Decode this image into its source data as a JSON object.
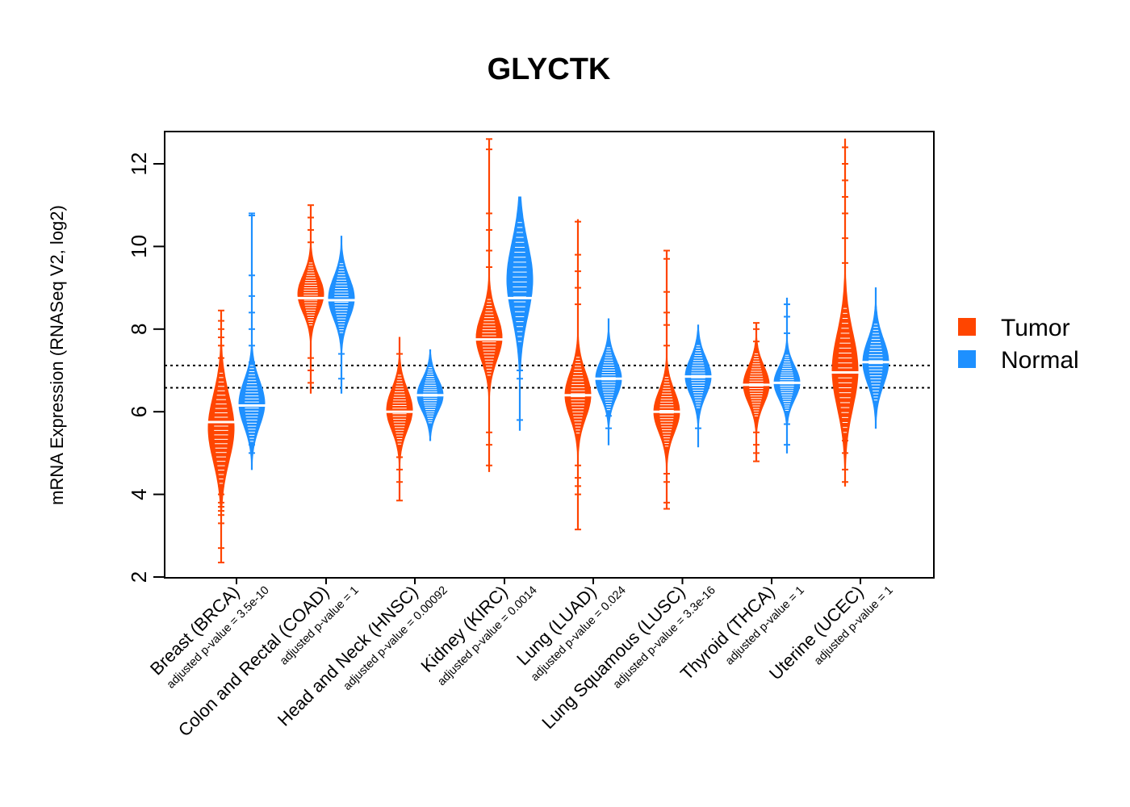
{
  "chart_data": {
    "type": "beanplot",
    "title": "GLYCTK",
    "xlabel": "",
    "ylabel": "mRNA Expression (RNASeq V2, log2)",
    "ylim": [
      2,
      12.8
    ],
    "yticks": [
      "2",
      "4",
      "6",
      "8",
      "10",
      "12"
    ],
    "reference_lines": [
      6.58,
      7.12
    ],
    "legend": {
      "position": "right",
      "entries": [
        {
          "name": "Tumor",
          "color": "#FF4500"
        },
        {
          "name": "Normal",
          "color": "#1E90FF"
        }
      ]
    },
    "categories": [
      {
        "label": "Breast (BRCA)",
        "pvalue": "adjusted p-value = 3.5e-10",
        "tumor": {
          "median": 5.75,
          "center": 5.6,
          "spread": 0.8,
          "min": 2.35,
          "max": 8.45,
          "outliers": [
            2.35,
            2.7,
            3.3,
            3.5,
            3.6,
            3.7,
            3.8,
            4.0,
            4.2,
            7.0,
            7.3,
            7.6,
            7.8,
            8.0,
            8.2,
            8.45
          ]
        },
        "normal": {
          "median": 6.15,
          "center": 6.2,
          "spread": 0.55,
          "min": 4.6,
          "max": 10.8,
          "outliers": [
            5.0,
            5.2,
            7.2,
            7.6,
            8.0,
            8.4,
            8.8,
            9.3,
            10.75,
            10.8
          ]
        }
      },
      {
        "label": "Colon and Rectal (COAD)",
        "pvalue": "adjusted p-value = 1",
        "tumor": {
          "median": 8.75,
          "center": 8.85,
          "spread": 0.45,
          "min": 6.45,
          "max": 11.0,
          "outliers": [
            6.7,
            7.0,
            7.3,
            10.1,
            10.4,
            10.7,
            11.0
          ]
        },
        "normal": {
          "median": 8.7,
          "center": 8.75,
          "spread": 0.5,
          "min": 6.45,
          "max": 10.25,
          "outliers": [
            6.8,
            7.4
          ]
        }
      },
      {
        "label": "Head and Neck (HNSC)",
        "pvalue": "adjusted p-value = 0.00092",
        "tumor": {
          "median": 6.0,
          "center": 6.05,
          "spread": 0.5,
          "min": 3.85,
          "max": 7.8,
          "outliers": [
            3.85,
            4.3,
            4.6,
            4.9,
            7.4
          ]
        },
        "normal": {
          "median": 6.4,
          "center": 6.4,
          "spread": 0.4,
          "min": 5.3,
          "max": 7.5,
          "outliers": []
        }
      },
      {
        "label": "Kidney (KIRC)",
        "pvalue": "adjusted p-value = 0.0014",
        "tumor": {
          "median": 7.75,
          "center": 7.8,
          "spread": 0.55,
          "min": 4.55,
          "max": 12.6,
          "outliers": [
            4.7,
            5.2,
            5.5,
            9.5,
            9.9,
            10.4,
            10.8,
            12.35,
            12.6
          ]
        },
        "normal": {
          "median": 8.75,
          "center": 9.2,
          "spread": 0.9,
          "min": 5.55,
          "max": 11.2,
          "outliers": [
            5.8,
            6.8,
            7.0,
            10.7
          ]
        }
      },
      {
        "label": "Lung (LUAD)",
        "pvalue": "adjusted p-value = 0.024",
        "tumor": {
          "median": 6.4,
          "center": 6.4,
          "spread": 0.55,
          "min": 3.15,
          "max": 10.65,
          "outliers": [
            3.15,
            4.0,
            4.2,
            4.4,
            4.7,
            8.6,
            9.0,
            9.4,
            9.8,
            10.6
          ]
        },
        "normal": {
          "median": 6.8,
          "center": 6.8,
          "spread": 0.45,
          "min": 5.2,
          "max": 8.25,
          "outliers": [
            5.6,
            5.9
          ]
        }
      },
      {
        "label": "Lung Squamous (LUSC)",
        "pvalue": "adjusted p-value = 3.3e-16",
        "tumor": {
          "median": 6.0,
          "center": 6.0,
          "spread": 0.5,
          "min": 3.65,
          "max": 9.9,
          "outliers": [
            3.65,
            3.8,
            4.3,
            4.5,
            7.6,
            8.1,
            8.4,
            8.9,
            9.7,
            9.9
          ]
        },
        "normal": {
          "median": 6.85,
          "center": 6.85,
          "spread": 0.45,
          "min": 5.15,
          "max": 8.1,
          "outliers": [
            5.6
          ]
        }
      },
      {
        "label": "Thyroid (THCA)",
        "pvalue": "adjusted p-value = 1",
        "tumor": {
          "median": 6.65,
          "center": 6.65,
          "spread": 0.45,
          "min": 4.8,
          "max": 8.15,
          "outliers": [
            4.8,
            5.0,
            5.2,
            5.5,
            7.7,
            8.0,
            8.15
          ]
        },
        "normal": {
          "median": 6.7,
          "center": 6.7,
          "spread": 0.4,
          "min": 5.0,
          "max": 8.75,
          "outliers": [
            5.2,
            5.7,
            7.9,
            8.3,
            8.6
          ]
        }
      },
      {
        "label": "Uterine (UCEC)",
        "pvalue": "adjusted p-value = 1",
        "tumor": {
          "median": 6.95,
          "center": 7.0,
          "spread": 0.9,
          "min": 4.2,
          "max": 12.6,
          "outliers": [
            4.3,
            4.6,
            5.0,
            5.3,
            9.6,
            10.2,
            10.8,
            11.2,
            11.6,
            12.0,
            12.4
          ]
        },
        "normal": {
          "median": 7.2,
          "center": 7.2,
          "spread": 0.55,
          "min": 5.6,
          "max": 9.0,
          "outliers": []
        }
      }
    ]
  }
}
